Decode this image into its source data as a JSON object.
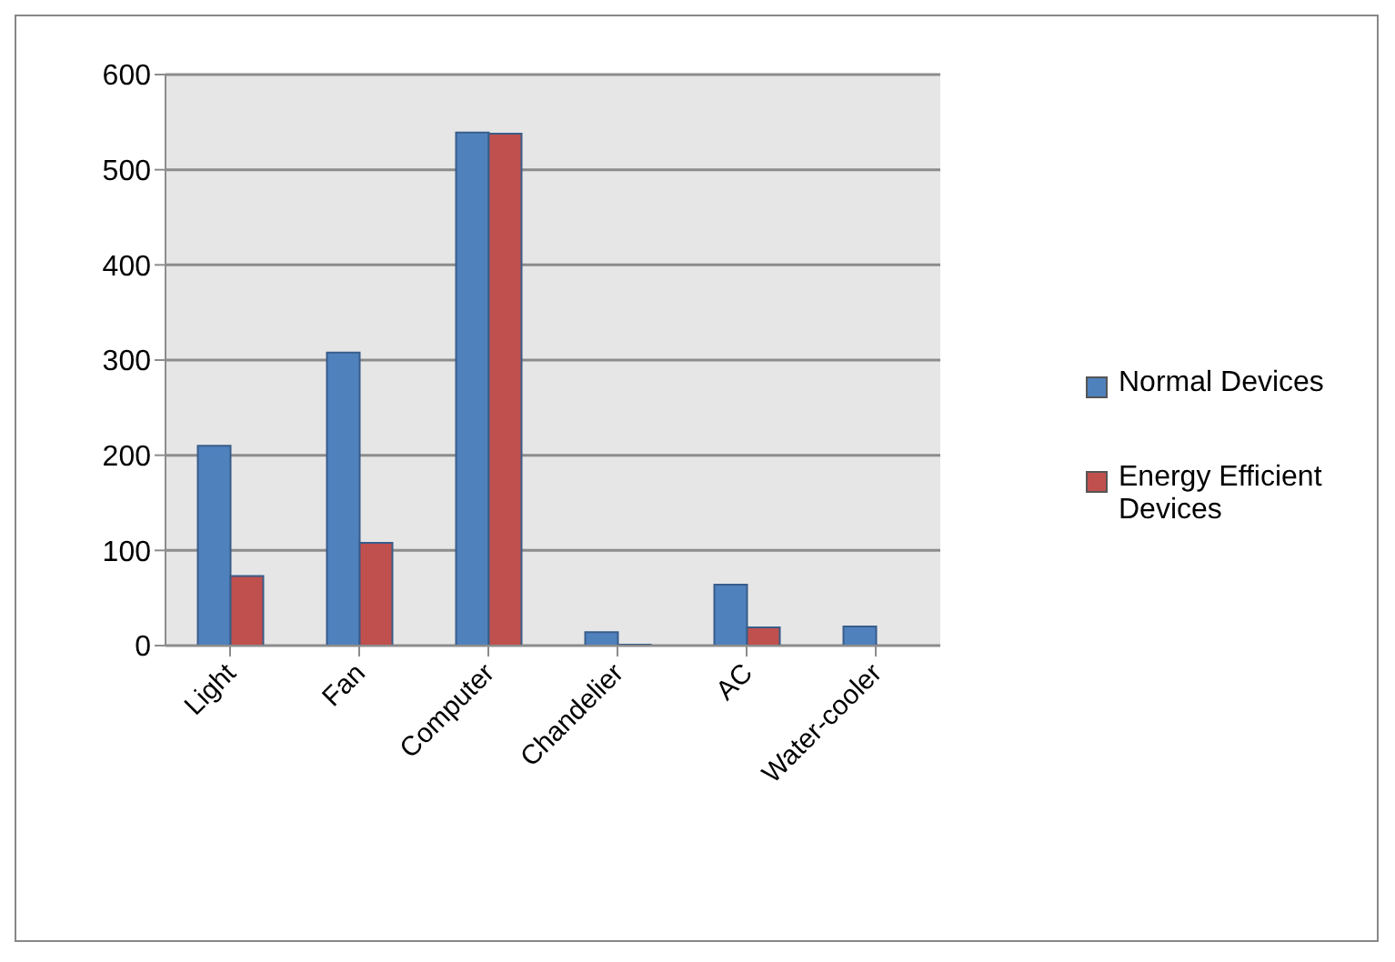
{
  "chart_data": {
    "type": "bar",
    "categories": [
      "Light",
      "Fan",
      "Computer",
      "Chandelier",
      "AC",
      "Water-cooler"
    ],
    "series": [
      {
        "name": "Normal Devices",
        "color": "#4f81bd",
        "values": [
          210,
          308,
          539,
          14,
          64,
          20
        ]
      },
      {
        "name": "Energy Efficient Devices",
        "color": "#c0504d",
        "values": [
          73,
          108,
          538,
          1,
          19,
          0
        ]
      }
    ],
    "ylim": [
      0,
      600
    ],
    "yticks": [
      0,
      100,
      200,
      300,
      400,
      500,
      600
    ],
    "grid": "y",
    "legend": "right"
  }
}
